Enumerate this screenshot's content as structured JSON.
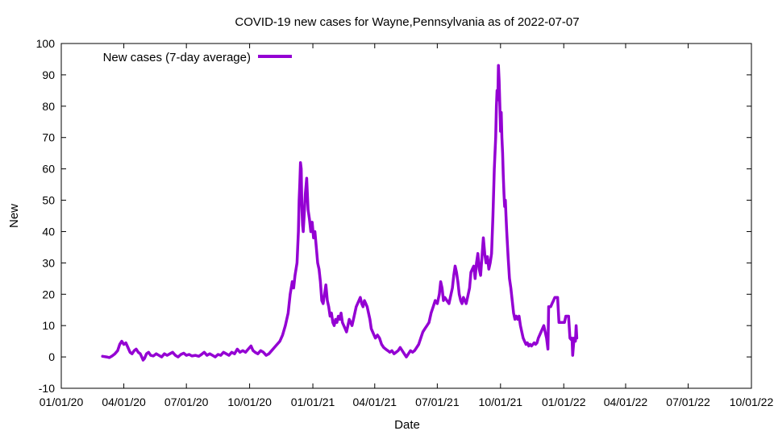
{
  "chart_data": {
    "type": "line",
    "title": "COVID-19 new cases for Wayne,Pennsylvania as of 2022-07-07",
    "xlabel": "Date",
    "ylabel": "New",
    "ylim": [
      -10,
      100
    ],
    "yticks": [
      -10,
      0,
      10,
      20,
      30,
      40,
      50,
      60,
      70,
      80,
      90,
      100
    ],
    "xlim_days": [
      0,
      1004
    ],
    "xticks": [
      {
        "label": "01/01/20",
        "day": 0
      },
      {
        "label": "04/01/20",
        "day": 91
      },
      {
        "label": "07/01/20",
        "day": 182
      },
      {
        "label": "10/01/20",
        "day": 274
      },
      {
        "label": "01/01/21",
        "day": 366
      },
      {
        "label": "04/01/21",
        "day": 456
      },
      {
        "label": "07/01/21",
        "day": 547
      },
      {
        "label": "10/01/21",
        "day": 639
      },
      {
        "label": "01/01/22",
        "day": 731
      },
      {
        "label": "04/01/22",
        "day": 821
      },
      {
        "label": "07/01/22",
        "day": 912
      },
      {
        "label": "10/01/22",
        "day": 1004
      }
    ],
    "legend": {
      "position": "top-left",
      "entries": [
        {
          "name": "New cases (7-day average)",
          "color": "#9400d3"
        }
      ]
    },
    "grid": false,
    "series": [
      {
        "name": "New cases (7-day average)",
        "color": "#9400d3",
        "points": [
          [
            60,
            0.2
          ],
          [
            66,
            0
          ],
          [
            70,
            -0.2
          ],
          [
            74,
            0.3
          ],
          [
            78,
            1
          ],
          [
            82,
            2
          ],
          [
            85,
            4
          ],
          [
            88,
            5
          ],
          [
            91,
            4
          ],
          [
            94,
            4.5
          ],
          [
            97,
            3
          ],
          [
            100,
            1.5
          ],
          [
            103,
            1
          ],
          [
            106,
            2
          ],
          [
            109,
            2.5
          ],
          [
            112,
            1.5
          ],
          [
            115,
            1
          ],
          [
            117,
            0
          ],
          [
            119,
            -1
          ],
          [
            121,
            -0.5
          ],
          [
            124,
            1
          ],
          [
            127,
            1.5
          ],
          [
            130,
            0.5
          ],
          [
            134,
            0.3
          ],
          [
            138,
            1
          ],
          [
            142,
            0.5
          ],
          [
            146,
            0
          ],
          [
            150,
            1
          ],
          [
            154,
            0.5
          ],
          [
            158,
            1
          ],
          [
            162,
            1.5
          ],
          [
            166,
            0.5
          ],
          [
            170,
            0
          ],
          [
            174,
            0.8
          ],
          [
            178,
            1.2
          ],
          [
            182,
            0.5
          ],
          [
            186,
            0.8
          ],
          [
            190,
            0.3
          ],
          [
            195,
            0.5
          ],
          [
            200,
            0.2
          ],
          [
            204,
            0.8
          ],
          [
            208,
            1.5
          ],
          [
            212,
            0.5
          ],
          [
            216,
            1
          ],
          [
            220,
            0.5
          ],
          [
            224,
            0
          ],
          [
            228,
            0.8
          ],
          [
            232,
            0.5
          ],
          [
            236,
            1.5
          ],
          [
            240,
            1
          ],
          [
            244,
            0.5
          ],
          [
            248,
            1.5
          ],
          [
            252,
            1
          ],
          [
            256,
            2.5
          ],
          [
            260,
            1.5
          ],
          [
            264,
            2
          ],
          [
            268,
            1.5
          ],
          [
            272,
            2.5
          ],
          [
            276,
            3.5
          ],
          [
            279,
            2
          ],
          [
            282,
            1.5
          ],
          [
            286,
            1
          ],
          [
            290,
            2
          ],
          [
            294,
            1.5
          ],
          [
            298,
            0.5
          ],
          [
            302,
            1
          ],
          [
            306,
            2
          ],
          [
            310,
            3
          ],
          [
            314,
            4
          ],
          [
            318,
            5
          ],
          [
            322,
            7
          ],
          [
            326,
            10
          ],
          [
            330,
            14
          ],
          [
            333,
            20
          ],
          [
            336,
            24
          ],
          [
            338,
            22
          ],
          [
            340,
            26
          ],
          [
            343,
            30
          ],
          [
            345,
            40
          ],
          [
            346,
            50
          ],
          [
            347,
            55
          ],
          [
            348,
            62
          ],
          [
            349,
            60
          ],
          [
            350,
            48
          ],
          [
            351,
            42
          ],
          [
            352,
            40
          ],
          [
            353,
            44
          ],
          [
            355,
            52
          ],
          [
            357,
            57
          ],
          [
            359,
            47
          ],
          [
            361,
            44
          ],
          [
            363,
            40
          ],
          [
            365,
            43
          ],
          [
            367,
            38
          ],
          [
            369,
            40
          ],
          [
            371,
            35
          ],
          [
            373,
            30
          ],
          [
            375,
            28
          ],
          [
            377,
            24
          ],
          [
            379,
            18
          ],
          [
            381,
            17
          ],
          [
            383,
            20
          ],
          [
            385,
            23
          ],
          [
            387,
            18
          ],
          [
            389,
            16
          ],
          [
            391,
            13
          ],
          [
            393,
            14
          ],
          [
            395,
            11
          ],
          [
            397,
            10
          ],
          [
            399,
            12
          ],
          [
            401,
            11
          ],
          [
            403,
            13
          ],
          [
            405,
            12
          ],
          [
            407,
            14
          ],
          [
            409,
            11
          ],
          [
            411,
            10
          ],
          [
            413,
            9
          ],
          [
            415,
            8
          ],
          [
            417,
            10
          ],
          [
            419,
            12
          ],
          [
            421,
            11
          ],
          [
            423,
            10
          ],
          [
            425,
            12
          ],
          [
            427,
            14
          ],
          [
            429,
            16
          ],
          [
            431,
            17
          ],
          [
            433,
            18
          ],
          [
            435,
            19
          ],
          [
            437,
            17
          ],
          [
            439,
            16
          ],
          [
            441,
            18
          ],
          [
            443,
            17
          ],
          [
            445,
            16
          ],
          [
            447,
            14
          ],
          [
            449,
            12
          ],
          [
            451,
            9
          ],
          [
            453,
            8
          ],
          [
            455,
            7
          ],
          [
            457,
            6
          ],
          [
            460,
            7
          ],
          [
            463,
            6
          ],
          [
            466,
            4
          ],
          [
            469,
            3
          ],
          [
            472,
            2.5
          ],
          [
            475,
            2
          ],
          [
            478,
            1.5
          ],
          [
            481,
            2
          ],
          [
            484,
            1
          ],
          [
            487,
            1.5
          ],
          [
            490,
            2
          ],
          [
            493,
            3
          ],
          [
            496,
            2
          ],
          [
            499,
            1
          ],
          [
            502,
            0
          ],
          [
            505,
            1
          ],
          [
            508,
            2
          ],
          [
            511,
            1.5
          ],
          [
            514,
            2
          ],
          [
            517,
            3
          ],
          [
            520,
            4
          ],
          [
            523,
            6
          ],
          [
            526,
            8
          ],
          [
            529,
            9
          ],
          [
            532,
            10
          ],
          [
            535,
            11
          ],
          [
            538,
            14
          ],
          [
            541,
            16
          ],
          [
            544,
            18
          ],
          [
            547,
            17
          ],
          [
            550,
            20
          ],
          [
            552,
            24
          ],
          [
            554,
            22
          ],
          [
            556,
            18
          ],
          [
            558,
            19
          ],
          [
            561,
            18
          ],
          [
            564,
            17
          ],
          [
            567,
            20
          ],
          [
            569,
            22
          ],
          [
            571,
            26
          ],
          [
            573,
            29
          ],
          [
            575,
            27
          ],
          [
            577,
            24
          ],
          [
            579,
            20
          ],
          [
            581,
            18
          ],
          [
            583,
            17
          ],
          [
            585,
            19
          ],
          [
            587,
            18
          ],
          [
            589,
            17
          ],
          [
            591,
            19
          ],
          [
            594,
            22
          ],
          [
            596,
            27
          ],
          [
            598,
            28
          ],
          [
            600,
            29
          ],
          [
            602,
            25
          ],
          [
            604,
            30
          ],
          [
            606,
            33
          ],
          [
            608,
            28
          ],
          [
            610,
            26
          ],
          [
            612,
            32
          ],
          [
            614,
            38
          ],
          [
            616,
            33
          ],
          [
            618,
            30
          ],
          [
            620,
            32
          ],
          [
            622,
            28
          ],
          [
            624,
            30
          ],
          [
            626,
            33
          ],
          [
            628,
            45
          ],
          [
            630,
            60
          ],
          [
            632,
            70
          ],
          [
            633,
            80
          ],
          [
            634,
            85
          ],
          [
            635,
            82
          ],
          [
            636,
            93
          ],
          [
            637,
            88
          ],
          [
            638,
            80
          ],
          [
            639,
            72
          ],
          [
            640,
            78
          ],
          [
            641,
            70
          ],
          [
            642,
            65
          ],
          [
            643,
            58
          ],
          [
            644,
            52
          ],
          [
            645,
            48
          ],
          [
            646,
            50
          ],
          [
            647,
            45
          ],
          [
            648,
            40
          ],
          [
            650,
            32
          ],
          [
            652,
            25
          ],
          [
            654,
            22
          ],
          [
            656,
            18
          ],
          [
            658,
            14
          ],
          [
            660,
            12
          ],
          [
            662,
            13
          ],
          [
            664,
            12
          ],
          [
            666,
            13
          ],
          [
            668,
            10
          ],
          [
            670,
            8
          ],
          [
            672,
            6
          ],
          [
            674,
            5
          ],
          [
            676,
            4
          ],
          [
            678,
            4.5
          ],
          [
            680,
            3.5
          ],
          [
            682,
            4
          ],
          [
            684,
            3.5
          ],
          [
            686,
            4
          ],
          [
            688,
            4.5
          ],
          [
            690,
            4
          ],
          [
            692,
            4.5
          ],
          [
            694,
            6
          ],
          [
            696,
            7
          ],
          [
            698,
            8
          ],
          [
            700,
            9
          ],
          [
            702,
            10
          ],
          [
            704,
            8
          ],
          [
            706,
            6
          ],
          [
            708,
            2.5
          ],
          [
            709,
            16
          ],
          [
            712,
            16
          ],
          [
            714,
            17
          ],
          [
            716,
            18
          ],
          [
            718,
            19
          ],
          [
            722,
            19
          ],
          [
            724,
            11
          ],
          [
            726,
            11
          ],
          [
            730,
            11
          ],
          [
            732,
            11
          ],
          [
            734,
            13
          ],
          [
            738,
            13
          ],
          [
            740,
            6
          ],
          [
            742,
            5.5
          ],
          [
            743,
            6
          ],
          [
            744,
            0.5
          ],
          [
            746,
            6
          ],
          [
            748,
            5
          ],
          [
            749,
            10
          ],
          [
            750,
            6
          ]
        ]
      }
    ]
  }
}
